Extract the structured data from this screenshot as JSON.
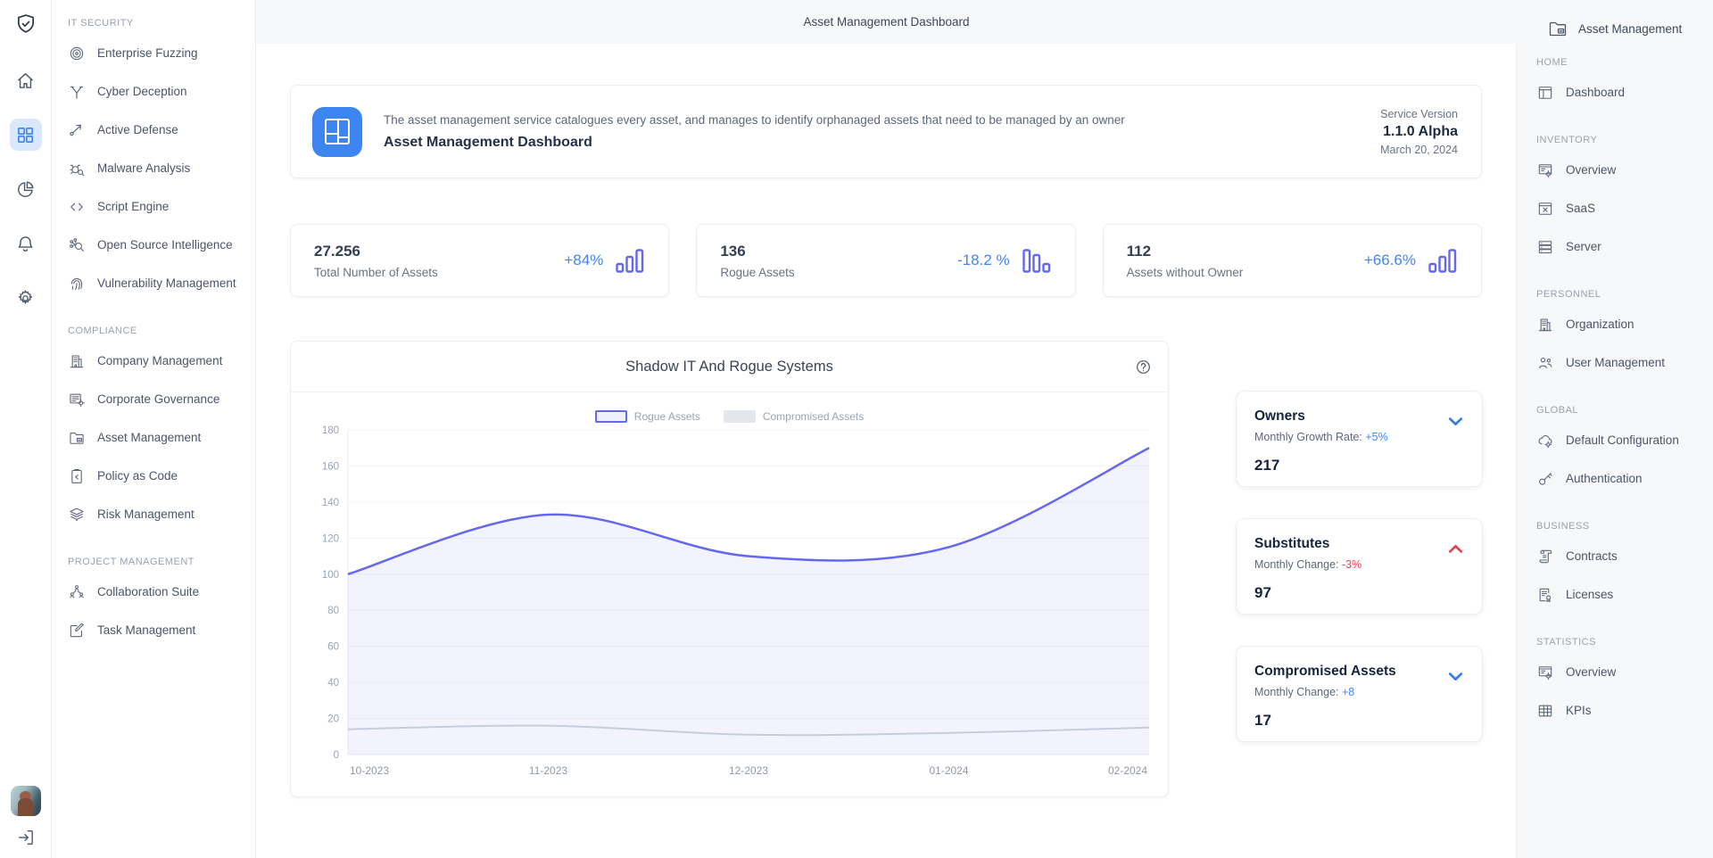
{
  "app": {
    "page_title": "Asset Management Dashboard",
    "accent_blue": "#4286f5",
    "indigo": "#6468ee",
    "red": "#e8414d",
    "rail_active_bg": "#d9e8fd"
  },
  "rail": {
    "logo_icon": "shield-check-icon",
    "items": [
      {
        "icon": "home-icon",
        "active": false
      },
      {
        "icon": "grid-icon",
        "active": true
      },
      {
        "icon": "pie-chart-icon",
        "active": false
      },
      {
        "icon": "bell-icon",
        "active": false
      },
      {
        "icon": "gear-icon",
        "active": false
      }
    ],
    "signout_icon": "sign-out-icon"
  },
  "sidebar": {
    "sections": [
      {
        "title": "IT SECURITY",
        "items": [
          {
            "label": "Enterprise Fuzzing",
            "icon": "target-icon"
          },
          {
            "label": "Cyber Deception",
            "icon": "branch-icon"
          },
          {
            "label": "Active Defense",
            "icon": "node-arrow-icon"
          },
          {
            "label": "Malware Analysis",
            "icon": "bug-search-icon"
          },
          {
            "label": "Script Engine",
            "icon": "code-icon"
          },
          {
            "label": "Open Source Intelligence",
            "icon": "network-search-icon"
          },
          {
            "label": "Vulnerability Management",
            "icon": "fingerprint-icon"
          }
        ]
      },
      {
        "title": "COMPLIANCE",
        "items": [
          {
            "label": "Company Management",
            "icon": "building-icon"
          },
          {
            "label": "Corporate Governance",
            "icon": "list-gear-icon"
          },
          {
            "label": "Asset Management",
            "icon": "folder-icon"
          },
          {
            "label": "Policy as Code",
            "icon": "clipboard-icon"
          },
          {
            "label": "Risk Management",
            "icon": "layers-icon"
          }
        ]
      },
      {
        "title": "PROJECT MANAGEMENT",
        "items": [
          {
            "label": "Collaboration Suite",
            "icon": "org-chart-icon"
          },
          {
            "label": "Task Management",
            "icon": "edit-square-icon"
          }
        ]
      }
    ]
  },
  "banner": {
    "icon": "dashboard-tile-icon",
    "description": "The asset management service catalogues every asset, and manages to identify orphanaged assets that need to be managed by an owner",
    "title": "Asset Management Dashboard",
    "version_label": "Service Version",
    "version": "1.1.0 Alpha",
    "date": "March 20, 2024"
  },
  "stats": [
    {
      "value": "27.256",
      "label": "Total Number of Assets",
      "change": "+84%",
      "change_color": "#4286f5",
      "bars_icon": "bars-ascending-icon"
    },
    {
      "value": "136",
      "label": "Rogue Assets",
      "change": "-18.2 %",
      "change_color": "#4286f5",
      "bars_icon": "bars-descending-icon"
    },
    {
      "value": "112",
      "label": "Assets without Owner",
      "change": "+66.6%",
      "change_color": "#4286f5",
      "bars_icon": "bars-ascending-icon"
    }
  ],
  "chart_data": {
    "type": "area",
    "title": "Shadow IT And Rogue Systems",
    "x": [
      "10-2023",
      "11-2023",
      "12-2023",
      "01-2024",
      "02-2024"
    ],
    "series": [
      {
        "name": "Rogue Assets",
        "values": [
          100,
          133,
          110,
          115,
          170
        ],
        "color": "#6468ee",
        "fill": "rgba(100,104,238,0.08)",
        "swatch_fill": "#eef0fc"
      },
      {
        "name": "Compromised Assets",
        "values": [
          14,
          16,
          11,
          12,
          15
        ],
        "color": "#c6cdda",
        "fill": "none",
        "swatch_fill": "#e3e6eb"
      }
    ],
    "ylim": [
      0,
      180
    ],
    "ytick_step": 20,
    "grid": true,
    "legend_position": "top"
  },
  "summary_cards": [
    {
      "title": "Owners",
      "subtitle_label": "Monthly Growth Rate: ",
      "subtitle_value": "+5%",
      "value_color": "#4286f5",
      "number": "217",
      "chevron": "chevron-down-icon",
      "chevron_color": "#3779f0"
    },
    {
      "title": "Substitutes",
      "subtitle_label": "Monthly Change: ",
      "subtitle_value": "-3%",
      "value_color": "#e8414d",
      "number": "97",
      "chevron": "chevron-up-icon",
      "chevron_color": "#e8414d"
    },
    {
      "title": "Compromised Assets",
      "subtitle_label": "Monthly Change: ",
      "subtitle_value": "+8",
      "value_color": "#4286f5",
      "number": "17",
      "chevron": "chevron-down-icon",
      "chevron_color": "#3779f0"
    }
  ],
  "right_sidebar": {
    "header": {
      "label": "Asset Management",
      "icon": "folder-icon"
    },
    "sections": [
      {
        "title": "HOME",
        "items": [
          {
            "label": "Dashboard",
            "icon": "dashboard-window-icon"
          }
        ]
      },
      {
        "title": "INVENTORY",
        "items": [
          {
            "label": "Overview",
            "icon": "monitor-gear-icon"
          },
          {
            "label": "SaaS",
            "icon": "window-x-icon"
          },
          {
            "label": "Server",
            "icon": "server-rows-icon"
          }
        ]
      },
      {
        "title": "PERSONNEL",
        "items": [
          {
            "label": "Organization",
            "icon": "building-icon"
          },
          {
            "label": "User Management",
            "icon": "users-icon"
          }
        ]
      },
      {
        "title": "GLOBAL",
        "items": [
          {
            "label": "Default Configuration",
            "icon": "cloud-gear-icon"
          },
          {
            "label": "Authentication",
            "icon": "key-icon"
          }
        ]
      },
      {
        "title": "BUSINESS",
        "items": [
          {
            "label": "Contracts",
            "icon": "scroll-icon"
          },
          {
            "label": "Licenses",
            "icon": "license-badge-icon"
          }
        ]
      },
      {
        "title": "STATISTICS",
        "items": [
          {
            "label": "Overview",
            "icon": "monitor-gear-icon"
          },
          {
            "label": "KPIs",
            "icon": "table-icon"
          }
        ]
      }
    ]
  }
}
